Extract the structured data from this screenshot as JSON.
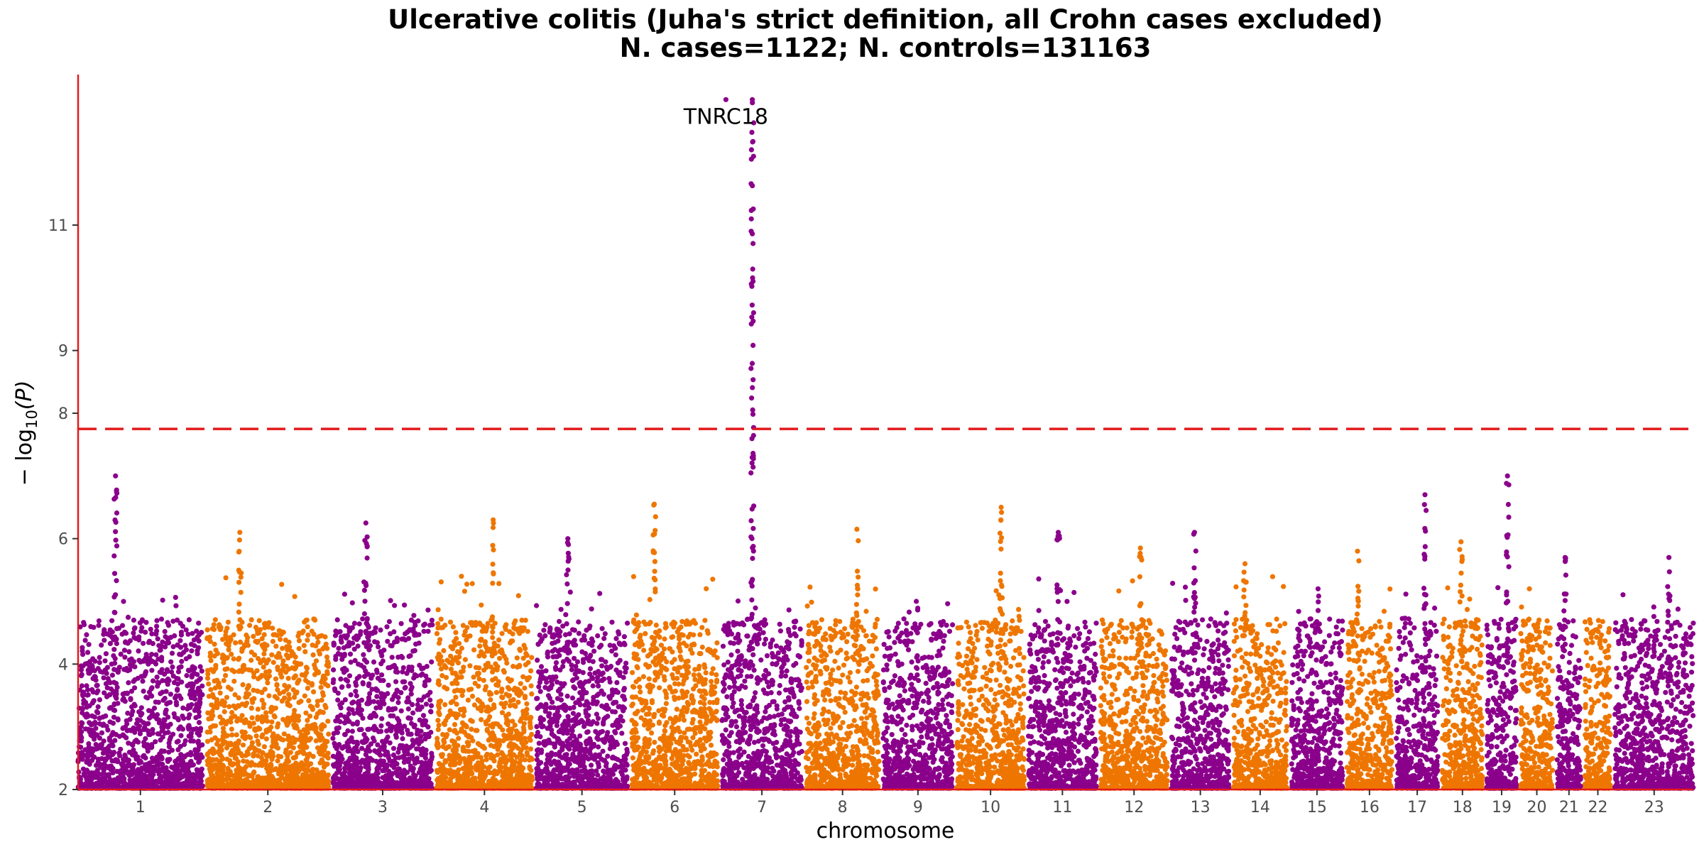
{
  "chart_data": {
    "type": "scatter",
    "subtype": "manhattan",
    "title_line1": "Ulcerative colitis (Juha's strict definition, all Crohn cases excluded)",
    "title_line2": "N. cases=1122; N. controls=131163",
    "xlabel": "chromosome",
    "ylabel_prefix": "− log",
    "ylabel_sub": "10",
    "ylabel_suffix": "(P)",
    "ylim": [
      2,
      13.4
    ],
    "yticks": [
      2,
      4,
      6,
      8,
      9,
      11
    ],
    "ytick_labels": [
      "2",
      "4",
      "6",
      "8",
      "9",
      "11"
    ],
    "significance_line": 7.75,
    "colors": {
      "odd": "#8B008B",
      "even": "#EE7600",
      "axis": "#E31A1C",
      "threshold": "#E31A1C"
    },
    "chromosomes": [
      {
        "label": "1",
        "size": 248,
        "color": "odd",
        "peak": 7.0
      },
      {
        "label": "2",
        "size": 242,
        "color": "even",
        "peak": 6.1
      },
      {
        "label": "3",
        "size": 198,
        "color": "odd",
        "peak": 6.25
      },
      {
        "label": "4",
        "size": 190,
        "color": "even",
        "peak": 6.3
      },
      {
        "label": "5",
        "size": 181,
        "color": "odd",
        "peak": 6.0
      },
      {
        "label": "6",
        "size": 171,
        "color": "even",
        "peak": 6.55
      },
      {
        "label": "7",
        "size": 159,
        "color": "odd",
        "peak": 13.0
      },
      {
        "label": "8",
        "size": 145,
        "color": "even",
        "peak": 6.15
      },
      {
        "label": "9",
        "size": 138,
        "color": "odd",
        "peak": 5.0
      },
      {
        "label": "10",
        "size": 134,
        "color": "even",
        "peak": 6.5
      },
      {
        "label": "11",
        "size": 135,
        "color": "odd",
        "peak": 6.1
      },
      {
        "label": "12",
        "size": 133,
        "color": "even",
        "peak": 5.85
      },
      {
        "label": "13",
        "size": 114,
        "color": "odd",
        "peak": 6.1
      },
      {
        "label": "14",
        "size": 107,
        "color": "even",
        "peak": 5.6
      },
      {
        "label": "15",
        "size": 102,
        "color": "odd",
        "peak": 5.2
      },
      {
        "label": "16",
        "size": 90,
        "color": "even",
        "peak": 5.8
      },
      {
        "label": "17",
        "size": 83,
        "color": "odd",
        "peak": 6.7
      },
      {
        "label": "18",
        "size": 80,
        "color": "even",
        "peak": 5.95
      },
      {
        "label": "19",
        "size": 59,
        "color": "odd",
        "peak": 7.0
      },
      {
        "label": "20",
        "size": 64,
        "color": "even",
        "peak": 5.2
      },
      {
        "label": "21",
        "size": 47,
        "color": "odd",
        "peak": 5.7
      },
      {
        "label": "22",
        "size": 51,
        "color": "even",
        "peak": 4.6
      },
      {
        "label": "23",
        "size": 156,
        "color": "odd",
        "peak": 5.7
      }
    ],
    "top_hits": [
      {
        "chromosome": "7",
        "y": 13.0,
        "label": "TNRC18"
      }
    ]
  }
}
